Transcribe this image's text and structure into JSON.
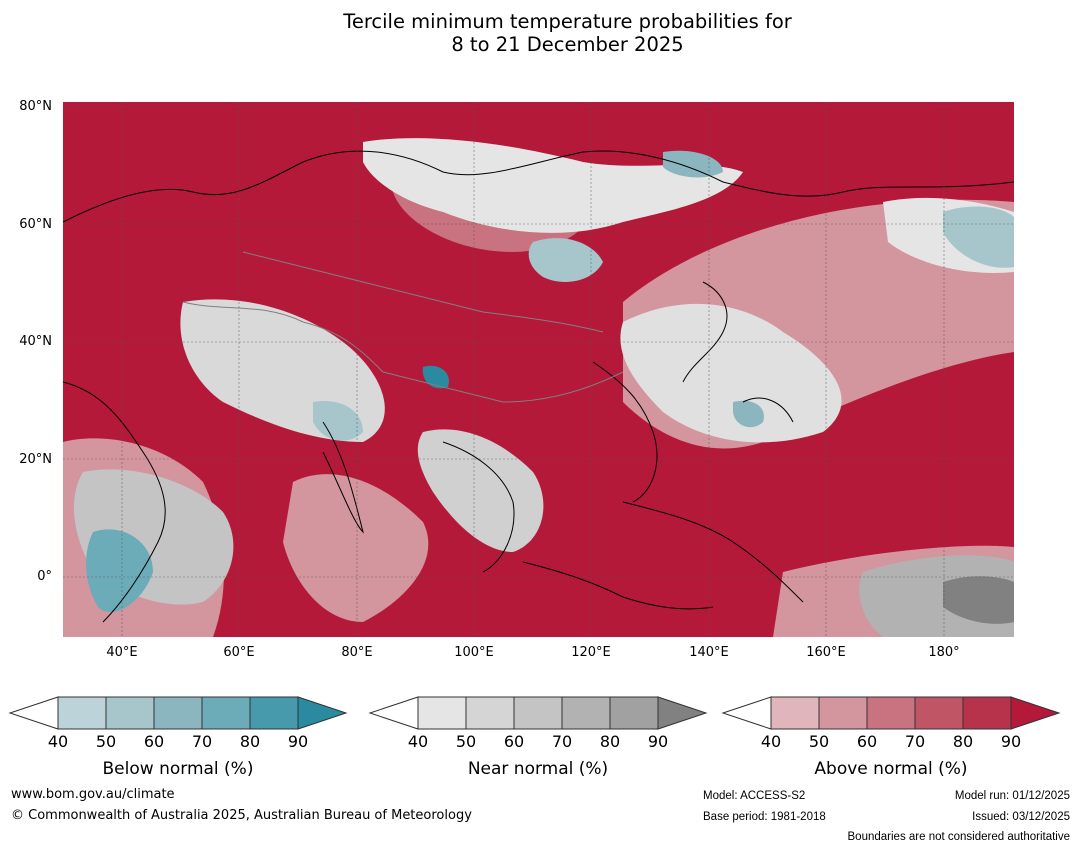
{
  "title": {
    "line1": "Tercile minimum temperature probabilities for",
    "line2": "8 to 21 December 2025"
  },
  "map": {
    "lat_labels": [
      "80°N",
      "60°N",
      "40°N",
      "20°N",
      "0°"
    ],
    "lon_labels": [
      "40°E",
      "60°E",
      "80°E",
      "100°E",
      "120°E",
      "140°E",
      "160°E",
      "180°"
    ],
    "extent": {
      "lon_min": 30,
      "lon_max": 192,
      "lat_min": -10,
      "lat_max": 81
    },
    "colors": {
      "ocean_background": "#b5193a",
      "coastline": "#000000",
      "boundaries": "#808080"
    }
  },
  "legends": [
    {
      "title": "Below normal (%)",
      "ticks": [
        "40",
        "50",
        "60",
        "70",
        "80",
        "90"
      ],
      "colors": [
        "#ffffff",
        "#bdd3da",
        "#a6c6cc",
        "#8bb6bf",
        "#6cabb8",
        "#469aab",
        "#2a8ba0"
      ]
    },
    {
      "title": "Near normal (%)",
      "ticks": [
        "40",
        "50",
        "60",
        "70",
        "80",
        "90"
      ],
      "colors": [
        "#ffffff",
        "#e5e5e5",
        "#d5d5d5",
        "#c4c4c4",
        "#b2b2b2",
        "#a1a1a1",
        "#818181"
      ]
    },
    {
      "title": "Above normal (%)",
      "ticks": [
        "40",
        "50",
        "60",
        "70",
        "80",
        "90"
      ],
      "colors": [
        "#ffffff",
        "#e0b6bc",
        "#d3969e",
        "#c8737f",
        "#bf5565",
        "#b7334b",
        "#b5193a"
      ]
    }
  ],
  "footer": {
    "website": "www.bom.gov.au/climate",
    "copyright": "© Commonwealth of Australia 2025, Australian Bureau of Meteorology",
    "model": "Model: ACCESS-S2",
    "base_period": "Base period: 1981-2018",
    "model_run": "Model run: 01/12/2025",
    "issued": "Issued: 03/12/2025",
    "disclaimer": "Boundaries are not considered authoritative"
  }
}
